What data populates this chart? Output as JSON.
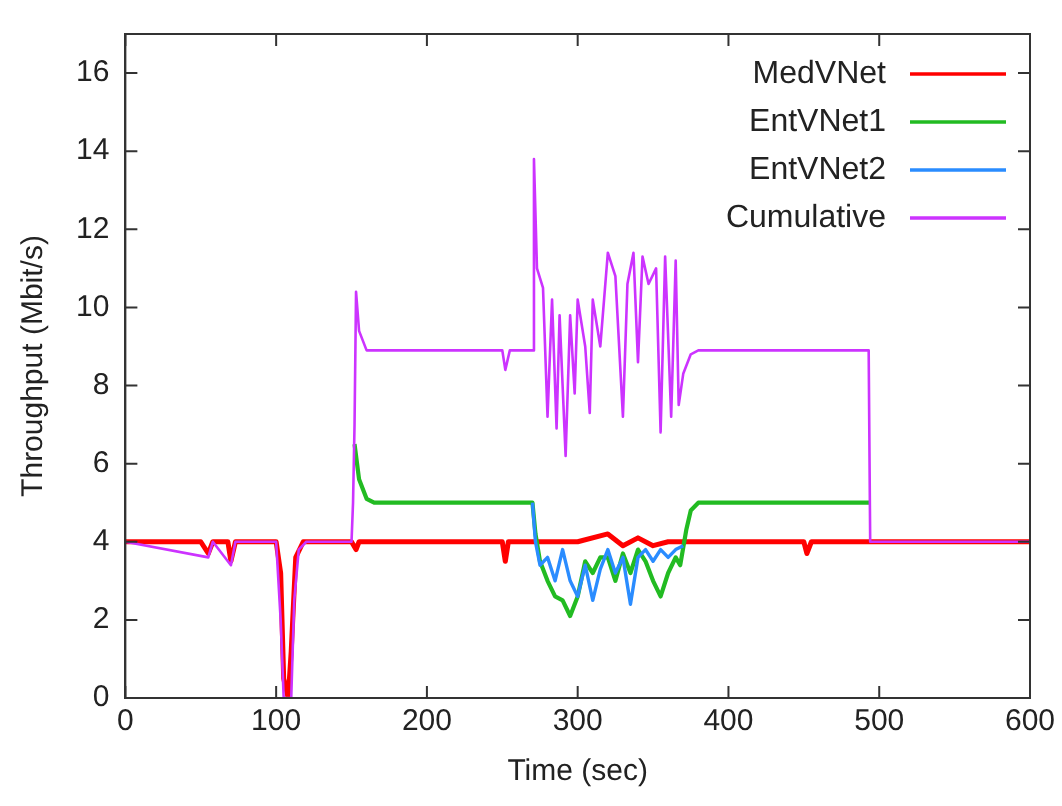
{
  "chart_data": {
    "type": "line",
    "xlabel": "Time (sec)",
    "ylabel": "Throughput (Mbit/s)",
    "xlim": [
      0,
      600
    ],
    "xticks": [
      0,
      100,
      200,
      300,
      400,
      500,
      600
    ],
    "ylim": [
      0,
      17
    ],
    "yticks": [
      0,
      2,
      4,
      6,
      8,
      10,
      12,
      14,
      16
    ],
    "grid": false,
    "legend": "top right",
    "marker": "none",
    "line_style": "solid",
    "series": [
      {
        "name": "MedVNet",
        "color": "#ff0000",
        "x": [
          0,
          50,
          55,
          58,
          68,
          70,
          73,
          100,
          103,
          105,
          108,
          110,
          113,
          118,
          150,
          153,
          155,
          250,
          252,
          254,
          300,
          320,
          330,
          340,
          350,
          360,
          380,
          450,
          452,
          455,
          600
        ],
        "values": [
          4,
          4,
          3.7,
          4,
          4,
          3.5,
          4,
          4,
          3.2,
          0.5,
          0,
          1.2,
          3.6,
          4,
          4,
          3.8,
          4,
          4,
          3.5,
          4,
          4,
          4.2,
          3.9,
          4.1,
          3.9,
          4,
          4,
          4,
          3.7,
          4,
          4
        ]
      },
      {
        "name": "EntVNet1",
        "color": "#22bb22",
        "x": [
          152,
          155,
          160,
          165,
          270,
          272,
          275,
          280,
          285,
          290,
          295,
          300,
          305,
          310,
          315,
          320,
          325,
          330,
          335,
          340,
          345,
          350,
          355,
          360,
          365,
          368,
          372,
          375,
          380,
          494
        ],
        "values": [
          6.5,
          5.6,
          5.1,
          5,
          5,
          4.2,
          3.5,
          3,
          2.6,
          2.5,
          2.1,
          2.6,
          3.5,
          3.2,
          3.6,
          3.6,
          3,
          3.7,
          3.2,
          3.8,
          3.5,
          3,
          2.6,
          3.2,
          3.6,
          3.4,
          4.3,
          4.8,
          5,
          5
        ]
      },
      {
        "name": "EntVNet2",
        "color": "#2a8cff",
        "x": [
          270,
          272,
          275,
          280,
          285,
          290,
          295,
          300,
          305,
          310,
          315,
          320,
          325,
          330,
          335,
          340,
          345,
          350,
          355,
          360,
          365,
          370
        ],
        "values": [
          5,
          4,
          3.4,
          3.6,
          3,
          3.8,
          3,
          2.6,
          3.4,
          2.5,
          3.3,
          3.8,
          3.2,
          3.6,
          2.4,
          3.6,
          3.8,
          3.5,
          3.8,
          3.6,
          3.8,
          3.9
        ]
      },
      {
        "name": "Cumulative",
        "color": "#cc33ff",
        "x": [
          0,
          55,
          58,
          70,
          73,
          100,
          103,
          105,
          110,
          112,
          115,
          120,
          150,
          151,
          152,
          153,
          155,
          160,
          250,
          252,
          255,
          270,
          271,
          273,
          277,
          280,
          283,
          286,
          288,
          292,
          295,
          298,
          300,
          305,
          308,
          310,
          315,
          320,
          325,
          330,
          333,
          337,
          340,
          343,
          347,
          352,
          355,
          358,
          362,
          365,
          367,
          370,
          375,
          380,
          490,
          493,
          494,
          600
        ],
        "values": [
          4,
          3.6,
          4,
          3.4,
          4,
          4,
          2,
          0,
          0,
          2.5,
          3.8,
          4,
          4,
          5,
          7,
          10.4,
          9.4,
          8.9,
          8.9,
          8.4,
          8.9,
          8.9,
          13.8,
          11,
          10.5,
          7.2,
          10.2,
          6.9,
          9.8,
          6.2,
          9.8,
          7.8,
          10.2,
          9,
          7.3,
          10.2,
          9,
          11.4,
          10.8,
          7.2,
          10.6,
          11.4,
          8.6,
          11.3,
          10.6,
          11,
          6.8,
          11.3,
          7.2,
          11.2,
          7.5,
          8.3,
          8.8,
          8.9,
          8.9,
          8.9,
          4,
          4
        ]
      }
    ]
  }
}
